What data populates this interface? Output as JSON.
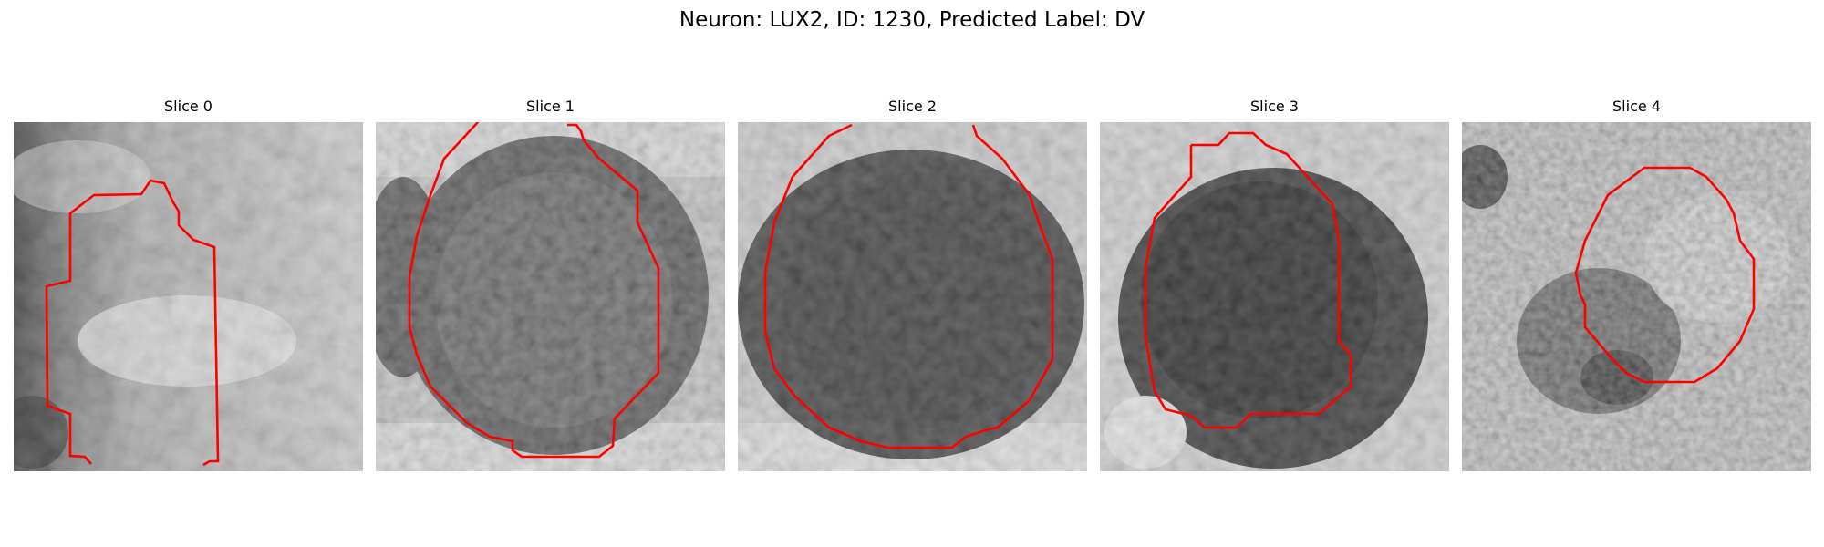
{
  "figure": {
    "title": "Neuron: LUX2, ID: 1230, Predicted Label: DV",
    "slices": [
      {
        "label": "Slice 0"
      },
      {
        "label": "Slice 1"
      },
      {
        "label": "Slice 2"
      },
      {
        "label": "Slice 3"
      },
      {
        "label": "Slice 4"
      }
    ]
  }
}
